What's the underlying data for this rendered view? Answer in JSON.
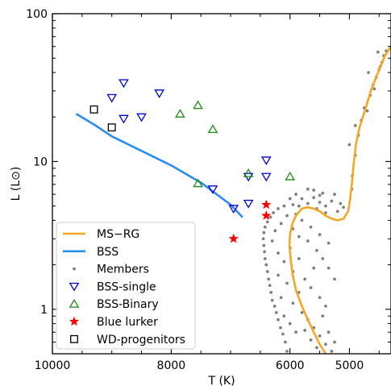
{
  "chart_data": {
    "type": "scatter",
    "xlabel": "T (K)",
    "ylabel": "L (L⊙)",
    "x_reversed": true,
    "y_log": true,
    "xlim": [
      10000,
      4300
    ],
    "ylim": [
      0.5,
      100
    ],
    "x_ticks": [
      10000,
      8000,
      6000,
      5000
    ],
    "x_tick_labels": [
      "10000",
      "8000",
      "6000",
      "5000"
    ],
    "y_ticks": [
      1,
      10,
      100
    ],
    "y_tick_labels": [
      "1",
      "10",
      "100"
    ],
    "legend_position": "lower-left",
    "legend": [
      {
        "label": "MS−RG",
        "marker": "line",
        "color": "#f5a623"
      },
      {
        "label": "BSS",
        "marker": "line",
        "color": "#2b8cf0"
      },
      {
        "label": "Members",
        "marker": "dot",
        "color": "#808080"
      },
      {
        "label": "BSS-single",
        "marker": "triangle-down",
        "color": "#0000d0"
      },
      {
        "label": "BSS-Binary",
        "marker": "triangle-up",
        "color": "#1a8a1a"
      },
      {
        "label": "Blue lurker",
        "marker": "star",
        "color": "#ff0000"
      },
      {
        "label": "WD-progenitors",
        "marker": "square",
        "color": "#000000"
      }
    ],
    "series": [
      {
        "name": "MS−RG",
        "kind": "line",
        "color": "#f5a623",
        "points": [
          [
            5400,
            0.5
          ],
          [
            5500,
            0.58
          ],
          [
            5600,
            0.7
          ],
          [
            5700,
            0.85
          ],
          [
            5800,
            1.05
          ],
          [
            5900,
            1.35
          ],
          [
            5960,
            1.75
          ],
          [
            5990,
            2.2
          ],
          [
            6010,
            2.7
          ],
          [
            6000,
            3.2
          ],
          [
            5960,
            3.8
          ],
          [
            5900,
            4.3
          ],
          [
            5800,
            4.8
          ],
          [
            5700,
            4.9
          ],
          [
            5600,
            4.8
          ],
          [
            5500,
            4.6
          ],
          [
            5400,
            4.3
          ],
          [
            5300,
            4.1
          ],
          [
            5200,
            4.0
          ],
          [
            5100,
            4.1
          ],
          [
            5020,
            4.6
          ],
          [
            4990,
            5.5
          ],
          [
            4960,
            7.0
          ],
          [
            4930,
            9.5
          ],
          [
            4890,
            13.0
          ],
          [
            4830,
            17.0
          ],
          [
            4740,
            22.0
          ],
          [
            4640,
            30.0
          ],
          [
            4520,
            40.0
          ],
          [
            4400,
            52.0
          ],
          [
            4300,
            60.0
          ]
        ]
      },
      {
        "name": "BSS",
        "kind": "line",
        "color": "#2b8cf0",
        "points": [
          [
            9600,
            21.0
          ],
          [
            9300,
            17.8
          ],
          [
            9000,
            14.8
          ],
          [
            8500,
            11.8
          ],
          [
            8000,
            9.4
          ],
          [
            7500,
            7.2
          ],
          [
            7000,
            5.1
          ],
          [
            6800,
            4.2
          ]
        ]
      },
      {
        "name": "BSS-single",
        "kind": "scatter",
        "marker": "triangle-down",
        "color": "#0000d0",
        "points": [
          [
            8800,
            34.0
          ],
          [
            9000,
            27.0
          ],
          [
            8500,
            20.0
          ],
          [
            8200,
            29.0
          ],
          [
            8800,
            19.5
          ],
          [
            7300,
            6.5
          ],
          [
            6400,
            10.2
          ],
          [
            6700,
            7.9
          ],
          [
            6400,
            7.9
          ],
          [
            6700,
            5.2
          ],
          [
            6950,
            4.8
          ]
        ]
      },
      {
        "name": "BSS-Binary",
        "kind": "scatter",
        "marker": "triangle-up",
        "color": "#1a8a1a",
        "points": [
          [
            7550,
            24.0
          ],
          [
            7850,
            21.0
          ],
          [
            7300,
            16.5
          ],
          [
            7550,
            7.1
          ],
          [
            6700,
            8.3
          ],
          [
            6000,
            7.9
          ]
        ]
      },
      {
        "name": "Blue lurker",
        "kind": "scatter",
        "marker": "star",
        "color": "#ff0000",
        "points": [
          [
            6400,
            5.1
          ],
          [
            6400,
            4.3
          ],
          [
            6950,
            3.0
          ]
        ]
      },
      {
        "name": "WD-progenitors",
        "kind": "scatter",
        "marker": "square",
        "color": "#000000",
        "points": [
          [
            9300,
            22.5
          ],
          [
            9000,
            17.0
          ]
        ]
      },
      {
        "name": "Members",
        "kind": "scatter",
        "marker": "dot",
        "color": "#808080",
        "points": [
          [
            6050,
            0.52
          ],
          [
            6080,
            0.6
          ],
          [
            6120,
            0.68
          ],
          [
            6160,
            0.75
          ],
          [
            6200,
            0.85
          ],
          [
            6230,
            0.95
          ],
          [
            6260,
            1.05
          ],
          [
            6300,
            1.15
          ],
          [
            6320,
            1.3
          ],
          [
            6340,
            1.45
          ],
          [
            6360,
            1.6
          ],
          [
            6380,
            1.8
          ],
          [
            6400,
            2.0
          ],
          [
            6420,
            2.2
          ],
          [
            6430,
            2.45
          ],
          [
            6440,
            2.7
          ],
          [
            6450,
            3.0
          ],
          [
            6440,
            3.3
          ],
          [
            6420,
            3.6
          ],
          [
            6380,
            3.9
          ],
          [
            6330,
            4.2
          ],
          [
            6280,
            4.5
          ],
          [
            6200,
            4.8
          ],
          [
            6100,
            5.0
          ],
          [
            5950,
            5.1
          ],
          [
            5850,
            5.0
          ],
          [
            5700,
            5.2
          ],
          [
            5550,
            4.8
          ],
          [
            5400,
            4.5
          ],
          [
            5200,
            4.6
          ],
          [
            5900,
            4.4
          ],
          [
            5800,
            4.0
          ],
          [
            5650,
            3.6
          ],
          [
            5500,
            3.2
          ],
          [
            5350,
            2.8
          ],
          [
            5700,
            2.9
          ],
          [
            5550,
            2.5
          ],
          [
            5450,
            2.2
          ],
          [
            5350,
            1.9
          ],
          [
            5250,
            1.6
          ],
          [
            5600,
            1.9
          ],
          [
            5750,
            1.6
          ],
          [
            5650,
            1.4
          ],
          [
            5500,
            1.2
          ],
          [
            5400,
            1.05
          ],
          [
            5850,
            1.3
          ],
          [
            5950,
            1.1
          ],
          [
            5800,
            0.95
          ],
          [
            5700,
            0.85
          ],
          [
            5600,
            0.75
          ],
          [
            5500,
            0.66
          ],
          [
            5400,
            0.58
          ],
          [
            5300,
            0.52
          ],
          [
            5900,
            0.7
          ],
          [
            6000,
            0.8
          ],
          [
            6100,
            0.9
          ],
          [
            6150,
            1.2
          ],
          [
            6050,
            1.5
          ],
          [
            5950,
            1.8
          ],
          [
            5850,
            2.2
          ],
          [
            6200,
            2.4
          ],
          [
            6300,
            2.9
          ],
          [
            6250,
            3.4
          ],
          [
            6150,
            3.8
          ],
          [
            6050,
            4.3
          ],
          [
            5950,
            3.5
          ],
          [
            5850,
            3.1
          ],
          [
            6000,
            2.6
          ],
          [
            6100,
            2.1
          ],
          [
            6200,
            1.7
          ],
          [
            6000,
            5.6
          ],
          [
            5900,
            6.0
          ],
          [
            5800,
            5.6
          ],
          [
            5600,
            5.7
          ],
          [
            5500,
            5.3
          ],
          [
            5450,
            6.1
          ],
          [
            5300,
            5.4
          ],
          [
            5150,
            5.2
          ],
          [
            5250,
            6.0
          ],
          [
            5600,
            6.4
          ],
          [
            5700,
            6.5
          ],
          [
            5500,
            5.9
          ],
          [
            5400,
            5.0
          ],
          [
            5100,
            4.9
          ],
          [
            5550,
            0.55
          ],
          [
            5650,
            0.62
          ],
          [
            5750,
            0.72
          ],
          [
            5450,
            0.9
          ],
          [
            5350,
            0.7
          ],
          [
            5250,
            0.6
          ],
          [
            4950,
            8.0
          ],
          [
            4900,
            11.0
          ],
          [
            4850,
            15.0
          ],
          [
            4800,
            19.0
          ],
          [
            4750,
            23.0
          ],
          [
            4650,
            28.0
          ],
          [
            4600,
            33.0
          ],
          [
            4550,
            37.0
          ],
          [
            4500,
            42.0
          ],
          [
            4450,
            47.0
          ],
          [
            4420,
            52.0
          ],
          [
            4380,
            56.0
          ],
          [
            4700,
            22.0
          ],
          [
            4580,
            31.0
          ],
          [
            4480,
            44.0
          ],
          [
            4960,
            6.5
          ],
          [
            5000,
            13.0
          ],
          [
            4900,
            17.5
          ],
          [
            4680,
            40.0
          ],
          [
            4520,
            55.0
          ]
        ]
      }
    ]
  }
}
